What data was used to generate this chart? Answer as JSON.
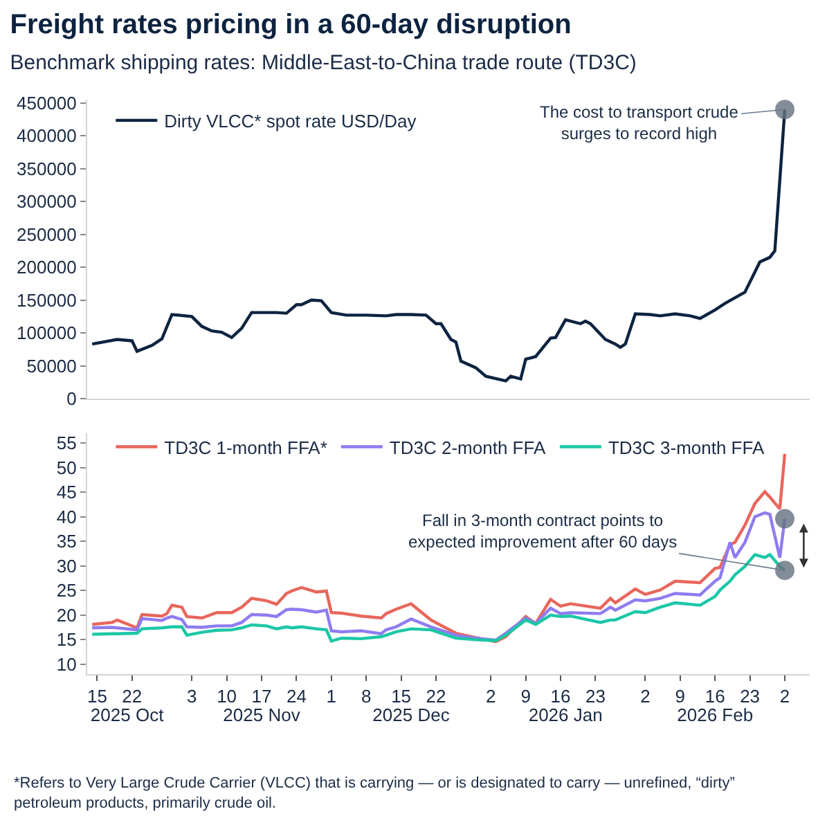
{
  "chart_data": [
    {
      "type": "line",
      "title": "Freight rates pricing in a 60-day disruption",
      "subtitle": "Benchmark shipping rates: Middle-East-to-China trade route (TD3C)",
      "x": [
        "2025-10-14",
        "2025-10-19",
        "2025-10-22",
        "2025-10-23",
        "2025-10-26",
        "2025-10-28",
        "2025-10-30",
        "2025-11-03",
        "2025-11-05",
        "2025-11-07",
        "2025-11-09",
        "2025-11-11",
        "2025-11-13",
        "2025-11-15",
        "2025-11-20",
        "2025-11-22",
        "2025-11-24",
        "2025-11-25",
        "2025-11-27",
        "2025-11-29",
        "2025-12-01",
        "2025-12-04",
        "2025-12-08",
        "2025-12-12",
        "2025-12-14",
        "2025-12-17",
        "2025-12-20",
        "2025-12-22",
        "2025-12-23",
        "2025-12-25",
        "2025-12-26",
        "2025-12-27",
        "2025-12-30",
        "2026-01-01",
        "2026-01-05",
        "2026-01-06",
        "2026-01-08",
        "2026-01-09",
        "2026-01-11",
        "2026-01-14",
        "2026-01-15",
        "2026-01-17",
        "2026-01-20",
        "2026-01-21",
        "2026-01-22",
        "2026-01-25",
        "2026-01-27",
        "2026-01-28",
        "2026-01-29",
        "2026-01-31",
        "2026-02-03",
        "2026-02-05",
        "2026-02-08",
        "2026-02-11",
        "2026-02-13",
        "2026-02-16",
        "2026-02-18",
        "2026-02-22",
        "2026-02-25",
        "2026-02-27",
        "2026-02-28",
        "2026-03-02"
      ],
      "series": [
        {
          "name": "Dirty VLCC* spot rate USD/Day",
          "color": "#0d2340",
          "values": [
            83000,
            90000,
            88000,
            72000,
            81000,
            91000,
            128000,
            125000,
            110000,
            103000,
            101000,
            93000,
            107000,
            131000,
            131000,
            130000,
            143000,
            143000,
            150000,
            149000,
            131000,
            127000,
            127000,
            126000,
            128000,
            128000,
            127000,
            114000,
            114000,
            90000,
            86000,
            57000,
            47000,
            34000,
            27000,
            34000,
            30000,
            60000,
            64000,
            92000,
            93000,
            120000,
            114000,
            118000,
            114000,
            90000,
            83000,
            78000,
            83000,
            129000,
            128000,
            126000,
            129000,
            126000,
            122000,
            135000,
            145000,
            162000,
            208000,
            215000,
            225000,
            440000
          ]
        }
      ],
      "xlim": [
        "2025-10-13",
        "2026-03-07"
      ],
      "ylim": [
        0,
        455000
      ],
      "yticks": [
        0,
        50000,
        100000,
        150000,
        200000,
        250000,
        300000,
        350000,
        400000,
        450000
      ],
      "tick_labels": "y",
      "legend": "top left",
      "line_style": "solid",
      "annotations": [
        {
          "text": "The cost to transport crude\nsurges to record high",
          "x": "2026-03-02",
          "y": 440000
        }
      ]
    },
    {
      "type": "line",
      "x": [
        "2025-10-14",
        "2025-10-18",
        "2025-10-19",
        "2025-10-23",
        "2025-10-24",
        "2025-10-28",
        "2025-10-29",
        "2025-10-30",
        "2025-11-01",
        "2025-11-02",
        "2025-11-05",
        "2025-11-08",
        "2025-11-11",
        "2025-11-13",
        "2025-11-15",
        "2025-11-18",
        "2025-11-20",
        "2025-11-22",
        "2025-11-23",
        "2025-11-25",
        "2025-11-28",
        "2025-11-30",
        "2025-12-01",
        "2025-12-03",
        "2025-12-07",
        "2025-12-11",
        "2025-12-12",
        "2025-12-14",
        "2025-12-17",
        "2025-12-21",
        "2025-12-26",
        "2025-12-30",
        "2026-01-03",
        "2026-01-05",
        "2026-01-09",
        "2026-01-11",
        "2026-01-14",
        "2026-01-16",
        "2026-01-18",
        "2026-01-24",
        "2026-01-26",
        "2026-01-27",
        "2026-01-31",
        "2026-02-02",
        "2026-02-05",
        "2026-02-08",
        "2026-02-13",
        "2026-02-16",
        "2026-02-17",
        "2026-02-19",
        "2026-02-20",
        "2026-02-22",
        "2026-02-24",
        "2026-02-26",
        "2026-02-27",
        "2026-03-01",
        "2026-03-02"
      ],
      "series": [
        {
          "name": "TD3C 1-month FFA*",
          "color": "#e8665c",
          "values": [
            18.1,
            18.5,
            19,
            17.4,
            20.1,
            19.8,
            20.3,
            22,
            21.6,
            19.7,
            19.4,
            20.5,
            20.5,
            21.6,
            23.4,
            22.9,
            22.2,
            24.4,
            24.9,
            25.6,
            24.7,
            24.9,
            20.5,
            20.4,
            19.8,
            19.4,
            20.3,
            21.2,
            22.3,
            19,
            16.3,
            15.4,
            14.6,
            15.6,
            19.7,
            18.3,
            23.2,
            21.8,
            22.3,
            21.4,
            23.4,
            22.5,
            25.3,
            24.2,
            25.1,
            26.9,
            26.6,
            29.5,
            29.7,
            34.3,
            34.8,
            38.3,
            42.7,
            45.1,
            44,
            41.6,
            52.8
          ]
        },
        {
          "name": "TD3C 2-month FFA",
          "color": "#8f7cf0",
          "values": [
            17.4,
            17.5,
            17.4,
            17,
            19.3,
            18.9,
            19.4,
            19.7,
            19.1,
            17.6,
            17.5,
            17.8,
            17.8,
            18.5,
            20.1,
            20,
            19.7,
            21.1,
            21.2,
            21.1,
            20.6,
            21,
            16.8,
            16.6,
            16.8,
            16.2,
            17,
            17.6,
            19.2,
            17.6,
            15.9,
            15.3,
            14.9,
            16.3,
            19.4,
            18.3,
            21.4,
            20.3,
            20.5,
            20.3,
            21.6,
            21,
            23.1,
            22.9,
            23.4,
            24.4,
            24.1,
            26.9,
            27.6,
            34.8,
            31.7,
            34.8,
            40,
            40.8,
            40.5,
            31.7,
            39.6
          ]
        },
        {
          "name": "TD3C 3-month FFA",
          "color": "#1cc7a6",
          "values": [
            16.1,
            16.2,
            16.2,
            16.3,
            17.2,
            17.4,
            17.5,
            17.6,
            17.6,
            15.9,
            16.5,
            16.9,
            17,
            17.4,
            18,
            17.8,
            17.2,
            17.6,
            17.4,
            17.6,
            17.2,
            17,
            14.7,
            15.3,
            15.2,
            15.6,
            15.9,
            16.6,
            17.2,
            17,
            15.3,
            15,
            14.8,
            15.9,
            19,
            18.1,
            20,
            19.7,
            19.8,
            18.5,
            19,
            19,
            20.7,
            20.5,
            21.6,
            22.5,
            22,
            23.8,
            25.1,
            26.9,
            28.2,
            29.9,
            32.3,
            31.7,
            32.3,
            29.9,
            29.1
          ]
        }
      ],
      "xlim": [
        "2025-10-13",
        "2026-03-07"
      ],
      "ylim": [
        8,
        57
      ],
      "yticks": [
        10,
        15,
        20,
        25,
        30,
        35,
        40,
        45,
        50,
        55
      ],
      "xticks": [
        {
          "value": "2025-10-15",
          "label": "15"
        },
        {
          "value": "2025-10-22",
          "label": "22"
        },
        {
          "value": "2025-11-03",
          "label": "3"
        },
        {
          "value": "2025-11-10",
          "label": "10"
        },
        {
          "value": "2025-11-17",
          "label": "17"
        },
        {
          "value": "2025-11-24",
          "label": "24"
        },
        {
          "value": "2025-12-01",
          "label": "1"
        },
        {
          "value": "2025-12-08",
          "label": "8"
        },
        {
          "value": "2025-12-15",
          "label": "15"
        },
        {
          "value": "2025-12-22",
          "label": "22"
        },
        {
          "value": "2026-01-02",
          "label": "2"
        },
        {
          "value": "2026-01-09",
          "label": "9"
        },
        {
          "value": "2026-01-16",
          "label": "16"
        },
        {
          "value": "2026-01-23",
          "label": "23"
        },
        {
          "value": "2026-02-02",
          "label": "2"
        },
        {
          "value": "2026-02-09",
          "label": "9"
        },
        {
          "value": "2026-02-16",
          "label": "16"
        },
        {
          "value": "2026-02-23",
          "label": "23"
        },
        {
          "value": "2026-03-02",
          "label": "2"
        }
      ],
      "x2lim": [
        "2025-10-13",
        "2026-03-07"
      ],
      "x2ticks": [
        {
          "value": "2025-10-21",
          "label": "2025 Oct"
        },
        {
          "value": "2025-11-17",
          "label": "2025 Nov"
        },
        {
          "value": "2025-12-17",
          "label": "2025 Dec"
        },
        {
          "value": "2026-01-17",
          "label": "2026 Jan"
        },
        {
          "value": "2026-02-16",
          "label": "2026 Feb"
        }
      ],
      "legend": "top",
      "line_style": "solid",
      "annotations": [
        {
          "text": "Fall in 3-month contract points to\nexpected improvement after 60 days",
          "x": "2026-03-02",
          "y": 29.1
        },
        "*Refers to Very Large Crude Carrier (VLCC) that is carrying — or is designated to carry — unrefined, “dirty”\npetroleum products, primarily crude oil."
      ]
    }
  ]
}
